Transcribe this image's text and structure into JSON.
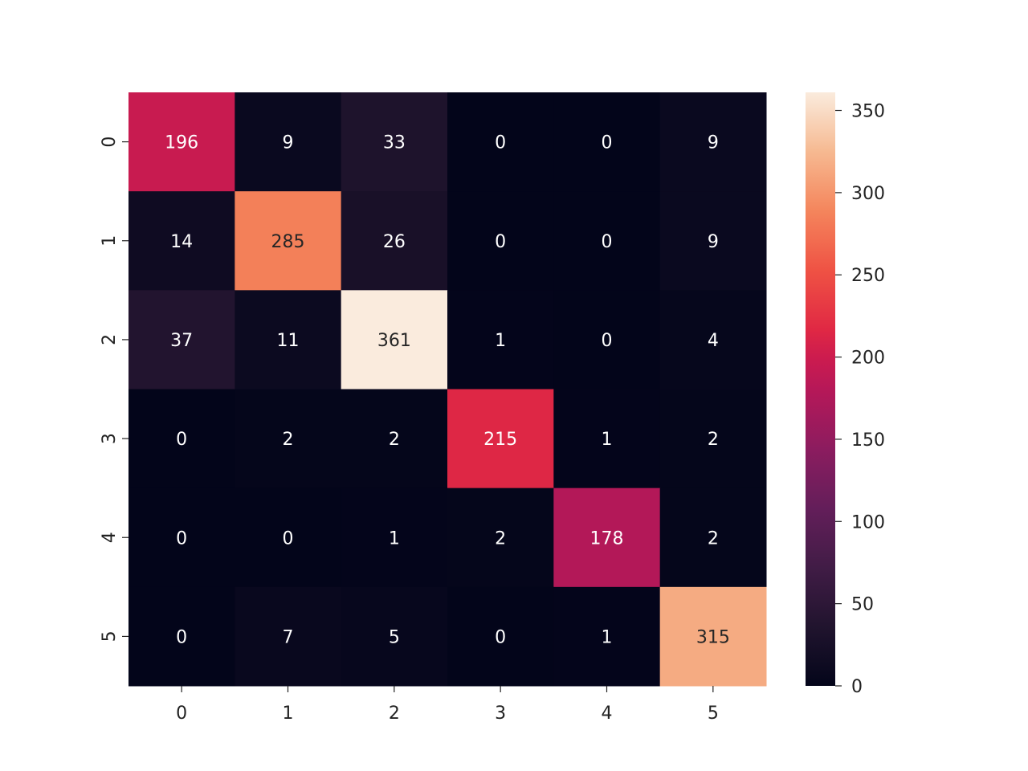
{
  "chart_data": {
    "type": "heatmap",
    "title": "",
    "xlabel": "",
    "ylabel": "",
    "x_categories": [
      "0",
      "1",
      "2",
      "3",
      "4",
      "5"
    ],
    "y_categories": [
      "0",
      "1",
      "2",
      "3",
      "4",
      "5"
    ],
    "values": [
      [
        196,
        9,
        33,
        0,
        0,
        9
      ],
      [
        14,
        285,
        26,
        0,
        0,
        9
      ],
      [
        37,
        11,
        361,
        1,
        0,
        4
      ],
      [
        0,
        2,
        2,
        215,
        1,
        2
      ],
      [
        0,
        0,
        1,
        2,
        178,
        2
      ],
      [
        0,
        7,
        5,
        0,
        1,
        315
      ]
    ],
    "colorbar": {
      "range": [
        0,
        361
      ],
      "ticks": [
        0,
        50,
        100,
        150,
        200,
        250,
        300,
        350
      ]
    },
    "colormap": "rocket",
    "grid": false,
    "legend": "colorbar-right"
  }
}
